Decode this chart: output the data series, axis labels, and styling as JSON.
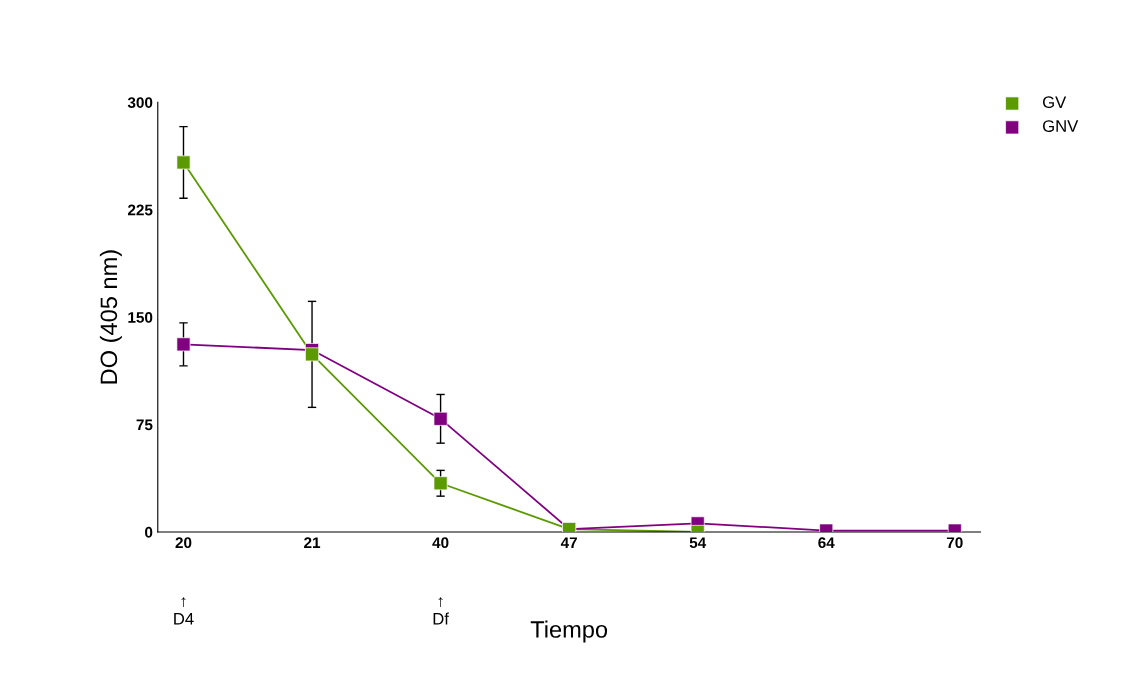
{
  "chart_data": {
    "type": "line",
    "xlabel": "Tiempo",
    "ylabel": "DO (405 nm)",
    "categories": [
      "20",
      "21",
      "40",
      "47",
      "54",
      "64",
      "70"
    ],
    "series": [
      {
        "name": "GV",
        "color": "#5b9a00",
        "values": [
          258,
          124,
          34,
          2,
          0,
          null,
          null
        ],
        "errors": [
          25,
          37,
          9,
          null,
          null,
          null,
          null
        ]
      },
      {
        "name": "GNV",
        "color": "#800080",
        "values": [
          131,
          127,
          79,
          2,
          6,
          1,
          1
        ],
        "errors": [
          15,
          null,
          17,
          null,
          null,
          null,
          null
        ]
      }
    ],
    "ylim": [
      0,
      300
    ],
    "yticks": [
      0,
      75,
      150,
      225,
      300
    ],
    "annotations": [
      "↑\nD4",
      "↑\nDf"
    ],
    "marker": "square",
    "legend": "top right",
    "grid": false
  }
}
